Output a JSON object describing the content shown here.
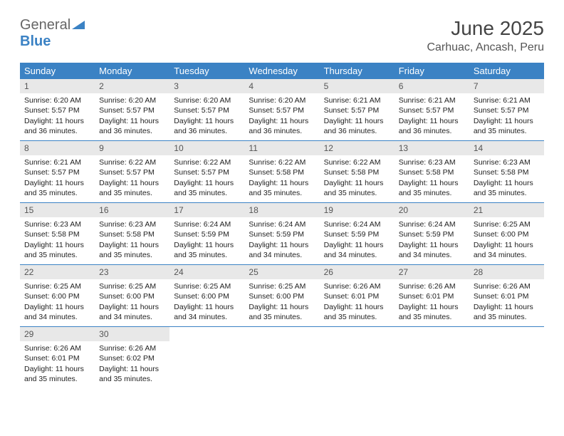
{
  "logo": {
    "general": "General",
    "blue": "Blue"
  },
  "title": "June 2025",
  "location": "Carhuac, Ancash, Peru",
  "colors": {
    "header_bg": "#3b82c4",
    "header_text": "#ffffff",
    "daynum_bg": "#e8e8e8",
    "daynum_text": "#555555",
    "border": "#3b82c4",
    "title_text": "#444444",
    "location_text": "#555555",
    "logo_gray": "#666666",
    "logo_blue": "#3b82c4"
  },
  "day_names": [
    "Sunday",
    "Monday",
    "Tuesday",
    "Wednesday",
    "Thursday",
    "Friday",
    "Saturday"
  ],
  "weeks": [
    [
      {
        "n": "1",
        "sr": "6:20 AM",
        "ss": "5:57 PM",
        "dl": "11 hours and 36 minutes."
      },
      {
        "n": "2",
        "sr": "6:20 AM",
        "ss": "5:57 PM",
        "dl": "11 hours and 36 minutes."
      },
      {
        "n": "3",
        "sr": "6:20 AM",
        "ss": "5:57 PM",
        "dl": "11 hours and 36 minutes."
      },
      {
        "n": "4",
        "sr": "6:20 AM",
        "ss": "5:57 PM",
        "dl": "11 hours and 36 minutes."
      },
      {
        "n": "5",
        "sr": "6:21 AM",
        "ss": "5:57 PM",
        "dl": "11 hours and 36 minutes."
      },
      {
        "n": "6",
        "sr": "6:21 AM",
        "ss": "5:57 PM",
        "dl": "11 hours and 36 minutes."
      },
      {
        "n": "7",
        "sr": "6:21 AM",
        "ss": "5:57 PM",
        "dl": "11 hours and 35 minutes."
      }
    ],
    [
      {
        "n": "8",
        "sr": "6:21 AM",
        "ss": "5:57 PM",
        "dl": "11 hours and 35 minutes."
      },
      {
        "n": "9",
        "sr": "6:22 AM",
        "ss": "5:57 PM",
        "dl": "11 hours and 35 minutes."
      },
      {
        "n": "10",
        "sr": "6:22 AM",
        "ss": "5:57 PM",
        "dl": "11 hours and 35 minutes."
      },
      {
        "n": "11",
        "sr": "6:22 AM",
        "ss": "5:58 PM",
        "dl": "11 hours and 35 minutes."
      },
      {
        "n": "12",
        "sr": "6:22 AM",
        "ss": "5:58 PM",
        "dl": "11 hours and 35 minutes."
      },
      {
        "n": "13",
        "sr": "6:23 AM",
        "ss": "5:58 PM",
        "dl": "11 hours and 35 minutes."
      },
      {
        "n": "14",
        "sr": "6:23 AM",
        "ss": "5:58 PM",
        "dl": "11 hours and 35 minutes."
      }
    ],
    [
      {
        "n": "15",
        "sr": "6:23 AM",
        "ss": "5:58 PM",
        "dl": "11 hours and 35 minutes."
      },
      {
        "n": "16",
        "sr": "6:23 AM",
        "ss": "5:58 PM",
        "dl": "11 hours and 35 minutes."
      },
      {
        "n": "17",
        "sr": "6:24 AM",
        "ss": "5:59 PM",
        "dl": "11 hours and 35 minutes."
      },
      {
        "n": "18",
        "sr": "6:24 AM",
        "ss": "5:59 PM",
        "dl": "11 hours and 34 minutes."
      },
      {
        "n": "19",
        "sr": "6:24 AM",
        "ss": "5:59 PM",
        "dl": "11 hours and 34 minutes."
      },
      {
        "n": "20",
        "sr": "6:24 AM",
        "ss": "5:59 PM",
        "dl": "11 hours and 34 minutes."
      },
      {
        "n": "21",
        "sr": "6:25 AM",
        "ss": "6:00 PM",
        "dl": "11 hours and 34 minutes."
      }
    ],
    [
      {
        "n": "22",
        "sr": "6:25 AM",
        "ss": "6:00 PM",
        "dl": "11 hours and 34 minutes."
      },
      {
        "n": "23",
        "sr": "6:25 AM",
        "ss": "6:00 PM",
        "dl": "11 hours and 34 minutes."
      },
      {
        "n": "24",
        "sr": "6:25 AM",
        "ss": "6:00 PM",
        "dl": "11 hours and 34 minutes."
      },
      {
        "n": "25",
        "sr": "6:25 AM",
        "ss": "6:00 PM",
        "dl": "11 hours and 35 minutes."
      },
      {
        "n": "26",
        "sr": "6:26 AM",
        "ss": "6:01 PM",
        "dl": "11 hours and 35 minutes."
      },
      {
        "n": "27",
        "sr": "6:26 AM",
        "ss": "6:01 PM",
        "dl": "11 hours and 35 minutes."
      },
      {
        "n": "28",
        "sr": "6:26 AM",
        "ss": "6:01 PM",
        "dl": "11 hours and 35 minutes."
      }
    ],
    [
      {
        "n": "29",
        "sr": "6:26 AM",
        "ss": "6:01 PM",
        "dl": "11 hours and 35 minutes."
      },
      {
        "n": "30",
        "sr": "6:26 AM",
        "ss": "6:02 PM",
        "dl": "11 hours and 35 minutes."
      },
      null,
      null,
      null,
      null,
      null
    ]
  ],
  "labels": {
    "sunrise": "Sunrise:",
    "sunset": "Sunset:",
    "daylight": "Daylight:"
  }
}
